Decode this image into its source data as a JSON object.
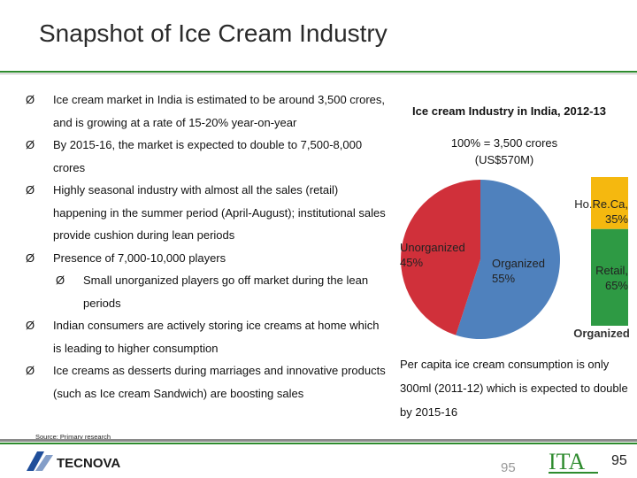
{
  "slide": {
    "title": "Snapshot of Ice Cream Industry",
    "source": "Source: Primary research",
    "page_number": "95",
    "page_number_faded": "95"
  },
  "bullets": [
    {
      "text": "Ice cream market in India is estimated to be around 3,500 crores, and is growing at a rate of 15-20% year-on-year",
      "level": 1
    },
    {
      "text": "By 2015-16, the market is expected to double to 7,500-8,000 crores",
      "level": 1
    },
    {
      "text": "Highly seasonal industry with almost all the sales (retail) happening in the summer period (April-August); institutional sales provide cushion during lean periods",
      "level": 1
    },
    {
      "text": "Presence of 7,000-10,000 players",
      "level": 1
    },
    {
      "text": "Small unorganized players go off market during the lean periods",
      "level": 2
    },
    {
      "text": "Indian consumers are actively storing ice creams at home which is leading to higher consumption",
      "level": 1
    },
    {
      "text": "Ice creams as desserts during marriages and innovative products (such as Ice cream Sandwich) are boosting sales",
      "level": 1
    }
  ],
  "bullet_marker": "Ø",
  "chart_data": {
    "type": "pie",
    "title": "Ice cream Industry in India, 2012-13",
    "total_label_line1": "100% = 3,500 crores",
    "total_label_line2": "(US$570M)",
    "slices": [
      {
        "label": "Unorganized",
        "value": 45,
        "value_label": "45%",
        "color": "#d0303a"
      },
      {
        "label": "Organized",
        "value": 55,
        "value_label": "55%",
        "color": "#4f81bd"
      }
    ],
    "breakdown": {
      "label": "Organized",
      "segments": [
        {
          "label": "Ho.Re.Ca,",
          "value": 35,
          "value_label": "35%",
          "color": "#f5b80f"
        },
        {
          "label": "Retail,",
          "value": 65,
          "value_label": "65%",
          "color": "#2e9a44"
        }
      ]
    }
  },
  "right_text": "Per capita ice cream consumption is only 300ml (2011-12) which is expected to double by 2015-16",
  "logos": {
    "left_text": "TECNOVA",
    "right_text": "ITA"
  }
}
